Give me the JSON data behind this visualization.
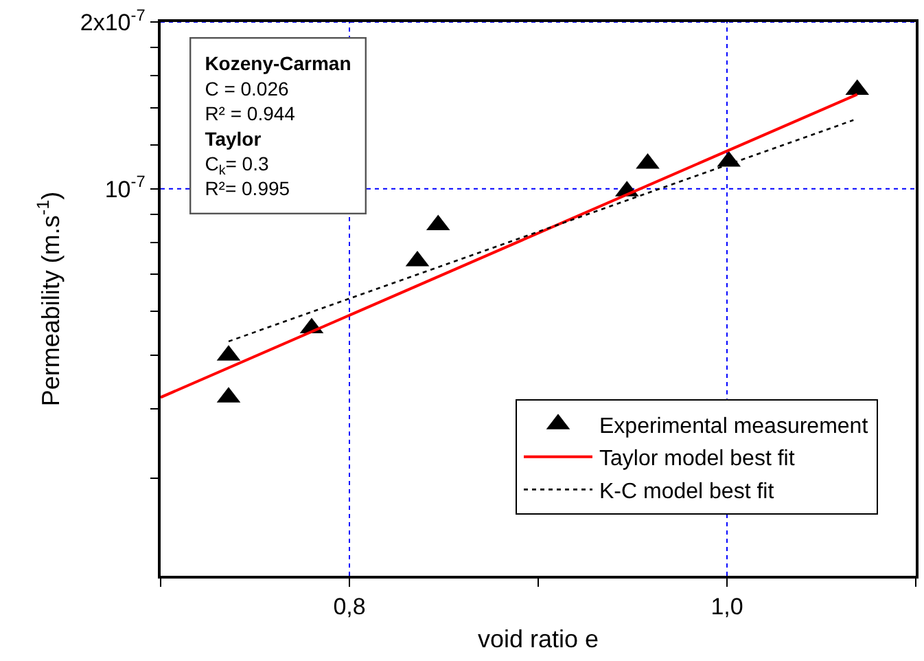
{
  "chart_data": {
    "type": "scatter",
    "xlabel": "void ratio e",
    "ylabel": "Permeability (m.s$^{-1}$)",
    "annotations": [
      "Kozeny-Carman",
      "C = 0.026",
      "R² = 0.944",
      "Taylor",
      "C$_{k}$= 0.3",
      "R²= 0.995"
    ],
    "series": [
      {
        "name": "Experimental measurement",
        "color": "#000000",
        "marker": "triangle",
        "x": [
          0.736,
          0.736,
          0.78,
          0.836,
          0.847,
          0.947,
          0.958,
          1.001,
          1.069
        ],
        "values": [
          5e-08,
          4.2e-08,
          5.6e-08,
          7.4e-08,
          8.6e-08,
          9.9e-08,
          1.11e-07,
          1.12e-07,
          1.51e-07
        ]
      },
      {
        "name": "Taylor model best fit",
        "type": "line",
        "color": "#ff0000",
        "line_style": "solid",
        "x": [
          0.7,
          1.069
        ],
        "values": [
          4.2e-08,
          1.48e-07
        ]
      },
      {
        "name": "K-C model best fit",
        "type": "line",
        "color": "#000000",
        "line_style": "dotted",
        "x": [
          0.736,
          1.067
        ],
        "values": [
          5.3e-08,
          1.33e-07
        ]
      }
    ],
    "xlim": [
      0.7,
      1.1
    ],
    "xticks": [
      {
        "value": 0.7,
        "label": null
      },
      {
        "value": 0.8,
        "label": "0,8"
      },
      {
        "value": 0.9,
        "label": null
      },
      {
        "value": 1.0,
        "label": "1,0"
      },
      {
        "value": 1.1,
        "label": null
      }
    ],
    "ylim": [
      2e-08,
      2e-07
    ],
    "yticks": [
      {
        "value": 3e-08,
        "label": null
      },
      {
        "value": 4e-08,
        "label": null
      },
      {
        "value": 5e-08,
        "label": null
      },
      {
        "value": 6e-08,
        "label": null
      },
      {
        "value": 7e-08,
        "label": null
      },
      {
        "value": 8e-08,
        "label": null
      },
      {
        "value": 9e-08,
        "label": null
      },
      {
        "value": 1e-07,
        "label": "10$^{-7}$"
      },
      {
        "value": 1.2e-07,
        "label": null
      },
      {
        "value": 1.4e-07,
        "label": null
      },
      {
        "value": 1.6e-07,
        "label": null
      },
      {
        "value": 1.8e-07,
        "label": null
      },
      {
        "value": 2e-07,
        "label": "2x10$^{-7}$"
      }
    ],
    "log": "y",
    "grid": true,
    "legend": "bottom right"
  }
}
